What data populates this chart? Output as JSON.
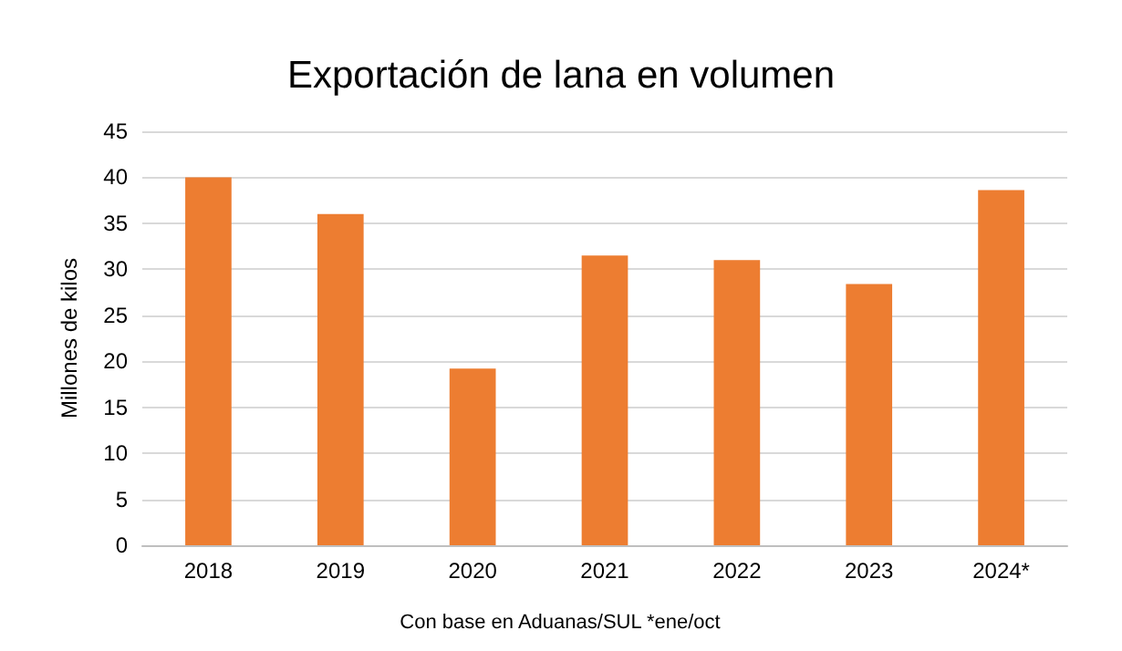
{
  "chart_data": {
    "type": "bar",
    "title": "Exportación de lana en volumen",
    "ylabel": "Millones de kilos",
    "categories": [
      "2018",
      "2019",
      "2020",
      "2021",
      "2022",
      "2023",
      "2024*"
    ],
    "values": [
      40.0,
      36.0,
      19.2,
      31.5,
      31.0,
      28.4,
      38.6
    ],
    "color": "#ed7d31",
    "ylim": [
      0,
      45
    ],
    "yticks": [
      0,
      5,
      10,
      15,
      20,
      25,
      30,
      35,
      40,
      45
    ],
    "grid": "y",
    "annotations": [
      "Con base en Aduanas/SUL *ene/oct"
    ]
  }
}
